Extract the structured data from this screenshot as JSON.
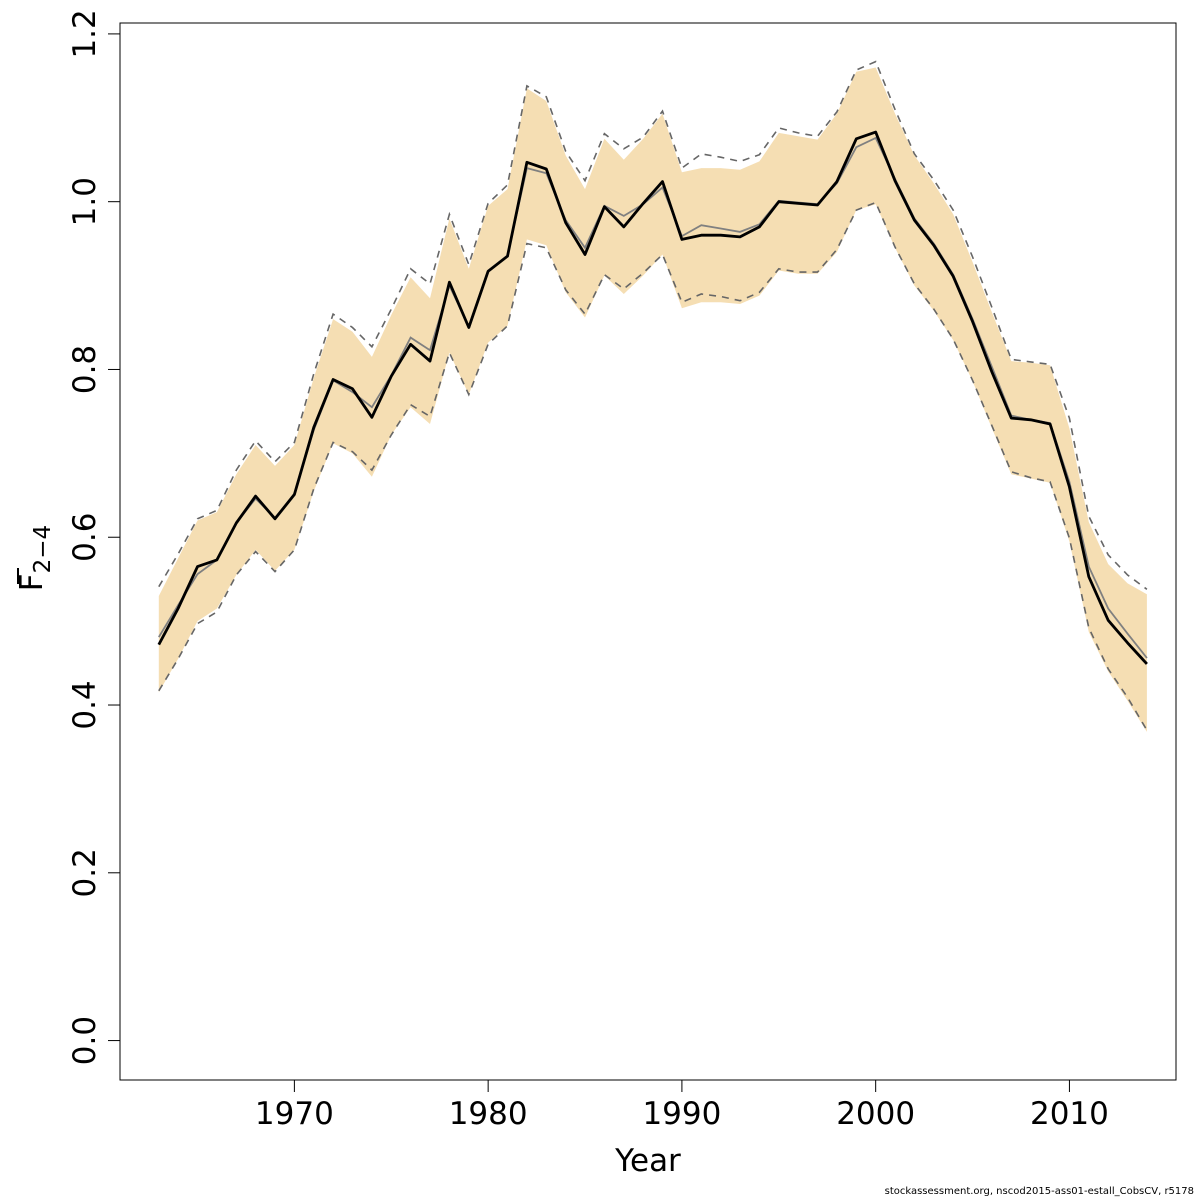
{
  "chart_data": {
    "type": "line",
    "title": "",
    "xlabel": "Year",
    "ylabel_main": "F",
    "ylabel_sub": "2−4",
    "xlim": [
      1961.0,
      2015.5
    ],
    "ylim": [
      -0.047,
      1.213
    ],
    "xticks": [
      1970,
      1980,
      1990,
      2000,
      2010
    ],
    "yticks": [
      0.0,
      0.2,
      0.4,
      0.6,
      0.8,
      1.0,
      1.2
    ],
    "ytick_labels": [
      "0.0",
      "0.2",
      "0.4",
      "0.6",
      "0.8",
      "1.0",
      "1.2"
    ],
    "grid": false,
    "colors": {
      "band": "#f5deb3",
      "estimate": "#000000",
      "alt_estimate": "#808080",
      "ci_dashed": "#666666"
    },
    "years": [
      1963,
      1964,
      1965,
      1966,
      1967,
      1968,
      1969,
      1970,
      1971,
      1972,
      1973,
      1974,
      1975,
      1976,
      1977,
      1978,
      1979,
      1980,
      1981,
      1982,
      1983,
      1984,
      1985,
      1986,
      1987,
      1988,
      1989,
      1990,
      1991,
      1992,
      1993,
      1994,
      1995,
      1996,
      1997,
      1998,
      1999,
      2000,
      2001,
      2002,
      2003,
      2004,
      2005,
      2006,
      2007,
      2008,
      2009,
      2010,
      2011,
      2012,
      2013,
      2014
    ],
    "series": [
      {
        "role": "estimate",
        "values": [
          0.472,
          0.515,
          0.565,
          0.573,
          0.617,
          0.649,
          0.622,
          0.651,
          0.731,
          0.788,
          0.777,
          0.743,
          0.792,
          0.83,
          0.81,
          0.904,
          0.85,
          0.917,
          0.935,
          1.047,
          1.039,
          0.975,
          0.937,
          0.994,
          0.97,
          0.998,
          1.024,
          0.955,
          0.96,
          0.96,
          0.958,
          0.97,
          1.0,
          0.998,
          0.996,
          1.024,
          1.075,
          1.083,
          1.025,
          0.978,
          0.948,
          0.911,
          0.857,
          0.797,
          0.742,
          0.74,
          0.735,
          0.66,
          0.553,
          0.501,
          0.474,
          0.449
        ]
      },
      {
        "role": "alt_estimate",
        "values": [
          0.481,
          0.519,
          0.556,
          0.573,
          0.617,
          0.646,
          0.623,
          0.652,
          0.728,
          0.787,
          0.773,
          0.755,
          0.793,
          0.838,
          0.823,
          0.9,
          0.851,
          0.918,
          0.936,
          1.04,
          1.034,
          0.978,
          0.945,
          0.995,
          0.983,
          0.997,
          1.017,
          0.959,
          0.972,
          0.968,
          0.964,
          0.973,
          1.001,
          0.999,
          0.997,
          1.022,
          1.065,
          1.076,
          1.027,
          0.98,
          0.95,
          0.913,
          0.86,
          0.803,
          0.745,
          0.74,
          0.736,
          0.666,
          0.565,
          0.515,
          0.485,
          0.456
        ]
      },
      {
        "role": "band_upper",
        "values": [
          0.53,
          0.575,
          0.62,
          0.63,
          0.675,
          0.71,
          0.685,
          0.71,
          0.79,
          0.86,
          0.845,
          0.815,
          0.865,
          0.91,
          0.885,
          0.98,
          0.92,
          0.995,
          1.015,
          1.135,
          1.12,
          1.055,
          1.015,
          1.075,
          1.05,
          1.075,
          1.105,
          1.035,
          1.04,
          1.04,
          1.038,
          1.048,
          1.082,
          1.078,
          1.074,
          1.105,
          1.155,
          1.16,
          1.105,
          1.055,
          1.022,
          0.985,
          0.928,
          0.868,
          0.81,
          0.808,
          0.805,
          0.73,
          0.618,
          0.568,
          0.545,
          0.532
        ]
      },
      {
        "role": "band_lower",
        "values": [
          0.415,
          0.455,
          0.5,
          0.515,
          0.555,
          0.585,
          0.56,
          0.585,
          0.655,
          0.712,
          0.7,
          0.672,
          0.722,
          0.755,
          0.735,
          0.82,
          0.77,
          0.832,
          0.852,
          0.955,
          0.948,
          0.892,
          0.862,
          0.912,
          0.89,
          0.912,
          0.937,
          0.873,
          0.88,
          0.88,
          0.878,
          0.888,
          0.918,
          0.914,
          0.914,
          0.94,
          0.99,
          0.997,
          0.945,
          0.9,
          0.87,
          0.835,
          0.786,
          0.73,
          0.675,
          0.67,
          0.665,
          0.595,
          0.487,
          0.44,
          0.405,
          0.368
        ]
      },
      {
        "role": "ci_upper",
        "values": [
          0.541,
          0.58,
          0.622,
          0.632,
          0.68,
          0.715,
          0.69,
          0.713,
          0.795,
          0.866,
          0.85,
          0.827,
          0.872,
          0.92,
          0.902,
          0.985,
          0.925,
          0.998,
          1.02,
          1.138,
          1.125,
          1.06,
          1.025,
          1.081,
          1.063,
          1.077,
          1.108,
          1.04,
          1.057,
          1.053,
          1.048,
          1.056,
          1.088,
          1.082,
          1.078,
          1.107,
          1.157,
          1.167,
          1.11,
          1.057,
          1.026,
          0.99,
          0.934,
          0.874,
          0.812,
          0.809,
          0.806,
          0.742,
          0.625,
          0.579,
          0.555,
          0.538
        ]
      },
      {
        "role": "ci_lower",
        "values": [
          0.417,
          0.455,
          0.497,
          0.511,
          0.555,
          0.583,
          0.559,
          0.585,
          0.658,
          0.713,
          0.702,
          0.68,
          0.722,
          0.758,
          0.744,
          0.82,
          0.77,
          0.83,
          0.852,
          0.95,
          0.945,
          0.895,
          0.866,
          0.913,
          0.896,
          0.915,
          0.937,
          0.88,
          0.89,
          0.887,
          0.882,
          0.892,
          0.92,
          0.916,
          0.916,
          0.943,
          0.99,
          0.999,
          0.946,
          0.902,
          0.872,
          0.836,
          0.787,
          0.733,
          0.678,
          0.671,
          0.666,
          0.599,
          0.492,
          0.443,
          0.409,
          0.37
        ]
      }
    ]
  },
  "footer": "stockassessment.org, nscod2015-ass01-estall_CobsCV, r5178"
}
